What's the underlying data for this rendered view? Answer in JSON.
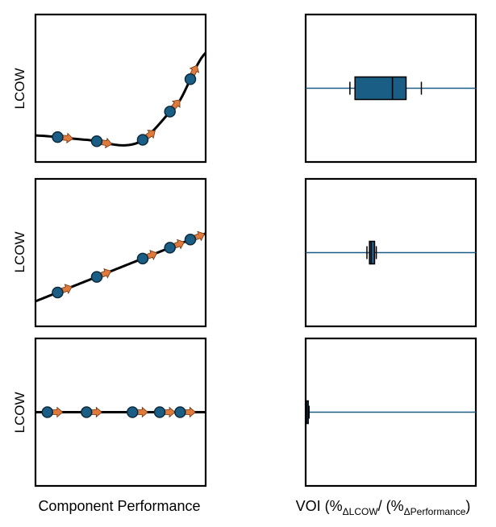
{
  "colors": {
    "marker": "#1b5e85",
    "arrow": "#e07a3c",
    "box": "#1b5e85",
    "line": "#000000"
  },
  "left_ylabel": "LCOW",
  "left_xlabel": "Component Performance",
  "right_xlabel": {
    "prefix": "VOI (%",
    "sub1": "ΔLCOW",
    "mid": "/ (%",
    "sub2": "ΔPerformance",
    "suffix": ")"
  },
  "chart_data": [
    {
      "type": "line",
      "shape": "convex-increasing",
      "ylabel": "LCOW",
      "ylim": [
        0,
        1
      ],
      "xlim": [
        0,
        1
      ],
      "x": [
        0.0,
        0.3,
        0.6,
        0.85,
        1.0
      ],
      "y": [
        0.18,
        0.15,
        0.13,
        0.42,
        0.74
      ],
      "markers_x": [
        0.13,
        0.36,
        0.63,
        0.79,
        0.91
      ],
      "box": {
        "whisker_low": 0.26,
        "q1": 0.29,
        "median": 0.51,
        "q3": 0.59,
        "whisker_high": 0.68
      }
    },
    {
      "type": "line",
      "shape": "linear-increasing",
      "ylabel": "LCOW",
      "ylim": [
        0,
        1
      ],
      "xlim": [
        0,
        1
      ],
      "x": [
        0.0,
        1.0
      ],
      "y": [
        0.17,
        0.63
      ],
      "markers_x": [
        0.13,
        0.36,
        0.63,
        0.79,
        0.91
      ],
      "box": {
        "whisker_low": 0.36,
        "q1": 0.375,
        "median": 0.385,
        "q3": 0.405,
        "whisker_high": 0.415
      }
    },
    {
      "type": "line",
      "shape": "flat",
      "ylabel": "LCOW",
      "ylim": [
        0,
        1
      ],
      "xlim": [
        0,
        1
      ],
      "x": [
        0.0,
        1.0
      ],
      "y": [
        0.5,
        0.5
      ],
      "markers_x": [
        0.07,
        0.3,
        0.57,
        0.73,
        0.85
      ],
      "box": {
        "whisker_low": 0.0,
        "q1": 0.0,
        "median": 0.005,
        "q3": 0.015,
        "whisker_high": 0.02
      }
    }
  ]
}
